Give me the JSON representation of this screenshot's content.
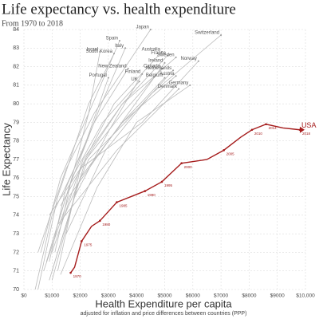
{
  "chart_data": {
    "type": "line",
    "title": "Life expectancy vs. health expenditure",
    "subtitle": "From 1970 to 2018",
    "x_label": "Health Expenditure per capita",
    "x_sublabel": "adjusted for inflation and price differences between countries (PPP)",
    "y_label": "Life Expectancy",
    "xlim": [
      0,
      10000
    ],
    "xticks": [
      {
        "value": 0,
        "label": "$0"
      },
      {
        "value": 1000,
        "label": "$1000"
      },
      {
        "value": 2000,
        "label": "$2000"
      },
      {
        "value": 3000,
        "label": "$3000"
      },
      {
        "value": 4000,
        "label": "$4000"
      },
      {
        "value": 5000,
        "label": "$5000"
      },
      {
        "value": 6000,
        "label": "$6000"
      },
      {
        "value": 7000,
        "label": "$7000"
      },
      {
        "value": 8000,
        "label": "$8000"
      },
      {
        "value": 9000,
        "label": "$9000"
      },
      {
        "value": 10000,
        "label": "$10,000"
      }
    ],
    "ylim": [
      70,
      84
    ],
    "yticks": [
      70,
      71,
      72,
      73,
      74,
      75,
      76,
      77,
      78,
      79,
      80,
      81,
      82,
      83,
      84
    ],
    "grid": true,
    "series": [
      {
        "name": "Japan",
        "color": "#bbbbbb",
        "x": [
          500,
          1500,
          2500,
          4500
        ],
        "values": [
          72.0,
          76.5,
          79.5,
          84.0
        ]
      },
      {
        "name": "Spain",
        "color": "#bbbbbb",
        "x": [
          600,
          1300,
          2300,
          3400
        ],
        "values": [
          72.0,
          76.0,
          79.5,
          83.4
        ]
      },
      {
        "name": "Italy",
        "color": "#bbbbbb",
        "x": [
          800,
          1600,
          2700,
          3600
        ],
        "values": [
          71.5,
          75.5,
          79.8,
          83.0
        ]
      },
      {
        "name": "Israel",
        "color": "#bbbbbb",
        "x": [
          1100,
          1700,
          2300,
          2700
        ],
        "values": [
          72.0,
          76.0,
          79.5,
          82.8
        ]
      },
      {
        "name": "South Korea",
        "color": "#bbbbbb",
        "x": [
          500,
          1200,
          2300,
          3200
        ],
        "values": [
          70.0,
          75.0,
          80.0,
          82.7
        ]
      },
      {
        "name": "Australia",
        "color": "#bbbbbb",
        "x": [
          1200,
          2000,
          3200,
          4900
        ],
        "values": [
          71.0,
          76.5,
          80.0,
          82.8
        ]
      },
      {
        "name": "France",
        "color": "#bbbbbb",
        "x": [
          1000,
          2100,
          3500,
          5100
        ],
        "values": [
          72.0,
          77.0,
          80.0,
          82.6
        ]
      },
      {
        "name": "Switzerland",
        "color": "#bbbbbb",
        "x": [
          1500,
          2900,
          4500,
          7000
        ],
        "values": [
          73.0,
          77.5,
          80.5,
          83.7
        ]
      },
      {
        "name": "Norway",
        "color": "#bbbbbb",
        "x": [
          900,
          2000,
          4200,
          6200
        ],
        "values": [
          74.0,
          76.5,
          79.0,
          82.3
        ]
      },
      {
        "name": "Sweden",
        "color": "#bbbbbb",
        "x": [
          1300,
          2400,
          3500,
          5400
        ],
        "values": [
          74.5,
          77.5,
          80.0,
          82.5
        ]
      },
      {
        "name": "Ireland",
        "color": "#bbbbbb",
        "x": [
          700,
          1600,
          3000,
          5000
        ],
        "values": [
          71.0,
          75.0,
          78.0,
          82.2
        ]
      },
      {
        "name": "Canada",
        "color": "#bbbbbb",
        "x": [
          1300,
          2200,
          3500,
          4900
        ],
        "values": [
          72.5,
          77.0,
          79.5,
          81.9
        ]
      },
      {
        "name": "New Zealand",
        "color": "#bbbbbb",
        "x": [
          900,
          1500,
          2500,
          3700
        ],
        "values": [
          71.5,
          75.5,
          79.0,
          81.9
        ]
      },
      {
        "name": "Netherlands",
        "color": "#bbbbbb",
        "x": [
          1300,
          2300,
          3600,
          5300
        ],
        "values": [
          73.5,
          77.0,
          79.0,
          81.8
        ]
      },
      {
        "name": "Austria",
        "color": "#bbbbbb",
        "x": [
          900,
          2000,
          3500,
          5400
        ],
        "values": [
          70.5,
          76.0,
          79.0,
          81.5
        ]
      },
      {
        "name": "Finland",
        "color": "#bbbbbb",
        "x": [
          1000,
          1800,
          3000,
          4200
        ],
        "values": [
          70.5,
          75.0,
          78.5,
          81.6
        ]
      },
      {
        "name": "Portugal",
        "color": "#bbbbbb",
        "x": [
          400,
          1000,
          2100,
          3000
        ],
        "values": [
          70.0,
          74.0,
          77.5,
          81.4
        ]
      },
      {
        "name": "Belgium",
        "color": "#bbbbbb",
        "x": [
          1000,
          2000,
          3500,
          5000
        ],
        "values": [
          71.0,
          76.0,
          79.0,
          81.4
        ]
      },
      {
        "name": "UK",
        "color": "#bbbbbb",
        "x": [
          900,
          1700,
          2800,
          4100
        ],
        "values": [
          72.0,
          76.0,
          79.0,
          81.2
        ]
      },
      {
        "name": "Germany",
        "color": "#bbbbbb",
        "x": [
          1300,
          2600,
          4000,
          5900
        ],
        "values": [
          70.8,
          75.5,
          79.0,
          81.0
        ]
      },
      {
        "name": "Denmark",
        "color": "#bbbbbb",
        "x": [
          1200,
          2000,
          3300,
          5500
        ],
        "values": [
          73.5,
          75.0,
          77.5,
          80.8
        ]
      },
      {
        "name": "USA",
        "color": "#a51c1c",
        "x": [
          1660,
          1800,
          2050,
          2400,
          2700,
          3300,
          4300,
          4900,
          5600,
          6500,
          7100,
          7700,
          8100,
          8600,
          9200,
          9800
        ],
        "values": [
          70.9,
          71.2,
          72.6,
          73.4,
          73.7,
          74.7,
          75.3,
          75.8,
          76.8,
          77.0,
          77.5,
          78.2,
          78.6,
          78.9,
          78.7,
          78.6
        ],
        "point_labels": [
          "1970",
          null,
          "1975",
          null,
          "1980",
          "1985",
          "1990",
          "1995",
          "2000",
          null,
          "2005",
          null,
          "2010",
          "2014",
          null,
          "2018"
        ]
      }
    ]
  }
}
